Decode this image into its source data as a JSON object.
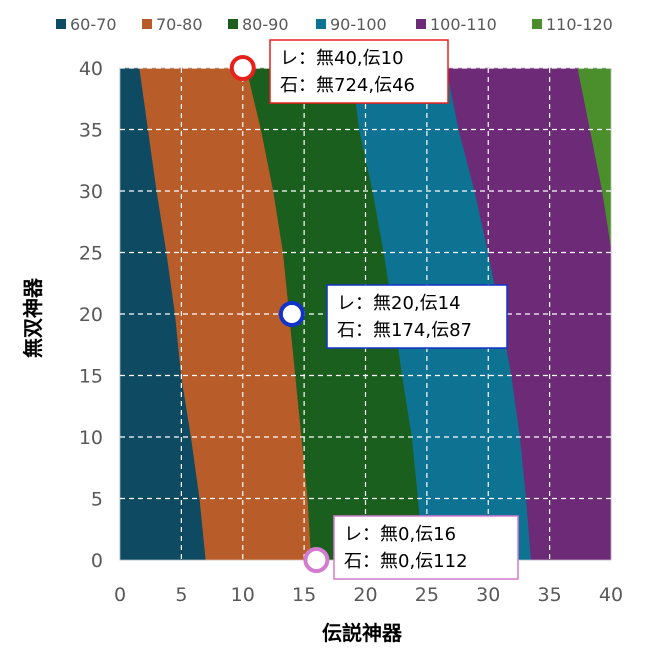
{
  "chart_data": {
    "type": "contour",
    "xlabel": "伝説神器",
    "ylabel": "無双神器",
    "xlim": [
      0,
      40
    ],
    "ylim": [
      0,
      40
    ],
    "x_ticks": [
      0,
      5,
      10,
      15,
      20,
      25,
      30,
      35,
      40
    ],
    "y_ticks": [
      0,
      5,
      10,
      15,
      20,
      25,
      30,
      35,
      40
    ],
    "grid": true,
    "legend_position": "top",
    "bands": [
      {
        "name": "60-70",
        "color": "#0f4a63"
      },
      {
        "name": "70-80",
        "color": "#b85c2a"
      },
      {
        "name": "80-90",
        "color": "#1b5f1f"
      },
      {
        "name": "90-100",
        "color": "#0e7392"
      },
      {
        "name": "100-110",
        "color": "#6d2a77"
      },
      {
        "name": "110-120",
        "color": "#4b8e2c"
      }
    ],
    "boundaries": [
      {
        "between": "60-70|70-80",
        "points": [
          [
            7.0,
            0
          ],
          [
            6.5,
            5
          ],
          [
            5.8,
            10
          ],
          [
            5.0,
            15
          ],
          [
            4.5,
            20
          ],
          [
            3.8,
            25
          ],
          [
            3.0,
            30
          ],
          [
            2.3,
            35
          ],
          [
            1.6,
            40
          ]
        ]
      },
      {
        "between": "70-80|80-90",
        "points": [
          [
            15.6,
            0
          ],
          [
            15.3,
            5
          ],
          [
            14.8,
            10
          ],
          [
            14.3,
            15
          ],
          [
            13.8,
            20
          ],
          [
            13.3,
            25
          ],
          [
            12.5,
            30
          ],
          [
            11.5,
            35
          ],
          [
            10.3,
            40
          ]
        ]
      },
      {
        "between": "80-90|90-100",
        "points": [
          [
            24.7,
            0
          ],
          [
            24.3,
            5
          ],
          [
            23.8,
            10
          ],
          [
            23.0,
            15
          ],
          [
            22.3,
            20
          ],
          [
            21.5,
            25
          ],
          [
            20.6,
            30
          ],
          [
            19.5,
            35
          ],
          [
            18.9,
            40
          ]
        ]
      },
      {
        "between": "90-100|100-110",
        "points": [
          [
            33.5,
            0
          ],
          [
            33.1,
            5
          ],
          [
            32.6,
            10
          ],
          [
            31.9,
            15
          ],
          [
            31.0,
            20
          ],
          [
            30.0,
            25
          ],
          [
            28.9,
            30
          ],
          [
            27.6,
            35
          ],
          [
            26.6,
            40
          ]
        ]
      },
      {
        "between": "100-110|110-120",
        "points": [
          [
            40,
            25.5
          ],
          [
            39.3,
            30
          ],
          [
            38.3,
            35
          ],
          [
            37.3,
            40
          ]
        ]
      }
    ],
    "points": [
      {
        "x": 10,
        "y": 40,
        "color": "#e8201c",
        "callout": [
          "レ：無40,伝10",
          "石：無724,伝46"
        ]
      },
      {
        "x": 14,
        "y": 20,
        "color": "#1233c9",
        "callout": [
          "レ：無20,伝14",
          "石：無174,伝87"
        ]
      },
      {
        "x": 16,
        "y": 0,
        "color": "#d37bd0",
        "callout": [
          "レ：無0,伝16",
          "石：無0,伝112"
        ]
      }
    ]
  }
}
